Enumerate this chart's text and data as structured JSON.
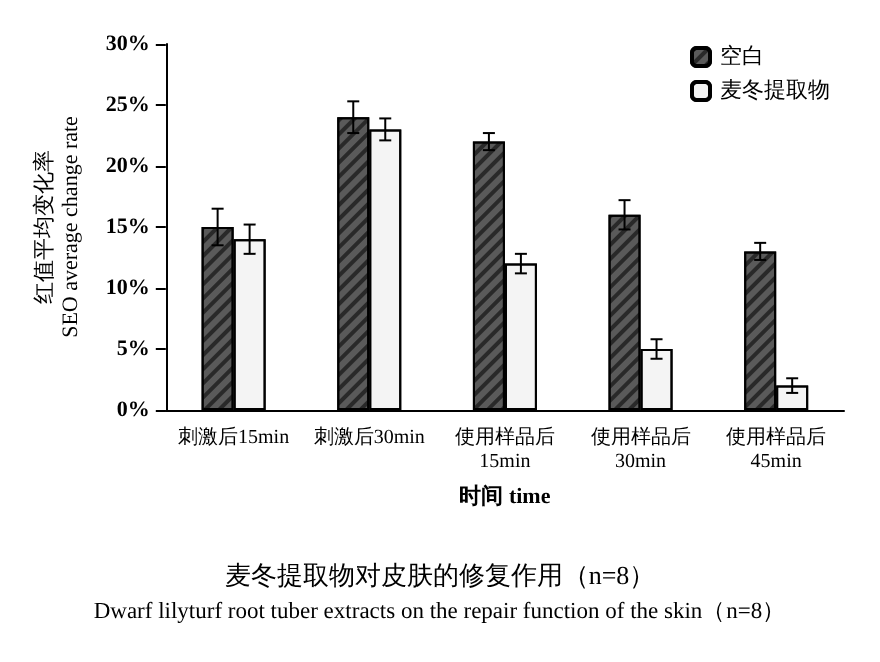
{
  "chart_data": {
    "type": "bar",
    "title": "麦冬提取物对皮肤的修复作用（n=8）",
    "subtitle": "Dwarf lilyturf root tuber extracts on the repair function of the skin（n=8）",
    "xlabel": "时间 time",
    "ylabel": "红值平均变化率\nSEO average change rate",
    "categories": [
      "刺激后15min",
      "刺激后30min",
      "使用样品后15min",
      "使用样品后30min",
      "使用样品后45min"
    ],
    "series": [
      {
        "name": "空白",
        "color": "#5a5a5a",
        "values": [
          15,
          24,
          22,
          16,
          13
        ],
        "errors": [
          1.5,
          1.3,
          0.7,
          1.2,
          0.7
        ]
      },
      {
        "name": "麦冬提取物",
        "color": "#f4f4f4",
        "values": [
          14,
          23,
          12,
          5,
          2
        ],
        "errors": [
          1.2,
          0.9,
          0.8,
          0.8,
          0.6
        ]
      }
    ],
    "ylim": [
      0,
      30
    ],
    "yticks": [
      {
        "value": 0,
        "label": "0%"
      },
      {
        "value": 5,
        "label": "5%"
      },
      {
        "value": 10,
        "label": "10%"
      },
      {
        "value": 15,
        "label": "15%"
      },
      {
        "value": 20,
        "label": "20%"
      },
      {
        "value": 25,
        "label": "25%"
      },
      {
        "value": 30,
        "label": "30%"
      }
    ],
    "grid": false,
    "legend": "top right"
  }
}
